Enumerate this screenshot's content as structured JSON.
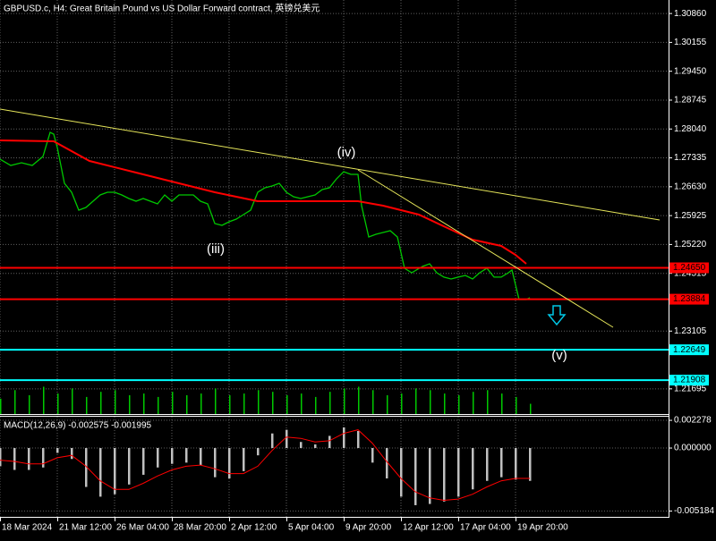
{
  "chart_data": [
    {
      "type": "line",
      "title": "GBPUSD.c, H4:  Great Britain Pound vs US Dollar Forward contract, 英镑兑美元",
      "xlim": [
        0,
        186.75
      ],
      "ylim": [
        1.2108,
        1.3119
      ],
      "yticks": [
        {
          "value": 1.3086,
          "label": "1.30860"
        },
        1.30155,
        {
          "value": 1.2945,
          "label": "1.29450"
        },
        1.28745,
        {
          "value": 1.2804,
          "label": "1.28040"
        },
        1.27335,
        {
          "value": 1.2663,
          "label": "1.26630"
        },
        1.25925,
        {
          "value": 1.2522,
          "label": "1.25220"
        },
        1.24515,
        1.23105,
        1.21695
      ],
      "xticks": [
        {
          "value": 0,
          "label": "18 Mar 2024"
        },
        {
          "value": 16,
          "label": "21 Mar 12:00"
        },
        {
          "value": 32,
          "label": "26 Mar 04:00"
        },
        {
          "value": 48,
          "label": "28 Mar 20:00"
        },
        {
          "value": 64,
          "label": "2 Apr 12:00"
        },
        {
          "value": 80,
          "label": "5 Apr 04:00"
        },
        {
          "value": 96,
          "label": "9 Apr 20:00"
        },
        {
          "value": 112,
          "label": "12 Apr 12:00"
        },
        {
          "value": 128,
          "label": "17 Apr 04:00"
        },
        {
          "value": 144,
          "label": "19 Apr 20:00"
        }
      ],
      "grid": true,
      "series": [
        {
          "color": "#00c800",
          "x": [
            0,
            3,
            6,
            9,
            12,
            14,
            15,
            16,
            18,
            20,
            22,
            24,
            26,
            28,
            30,
            32,
            34,
            36,
            38,
            40,
            42,
            44,
            46,
            48,
            50,
            52,
            54,
            56,
            58,
            60,
            62,
            64,
            66,
            68,
            70,
            72,
            74,
            76,
            78,
            80,
            82,
            84,
            86,
            88,
            90,
            92,
            94,
            96,
            98,
            100,
            101,
            103,
            105,
            107,
            109,
            111,
            113,
            115,
            118,
            120,
            122,
            124,
            126,
            128,
            130,
            132,
            134,
            136,
            138,
            140,
            142,
            143,
            145,
            147,
            148
          ],
          "values": [
            1.27303,
            1.2715,
            1.27215,
            1.2715,
            1.27368,
            1.27957,
            1.27914,
            1.27586,
            1.26713,
            1.26495,
            1.26058,
            1.26124,
            1.26277,
            1.2643,
            1.26495,
            1.26495,
            1.2643,
            1.26342,
            1.26277,
            1.26342,
            1.26277,
            1.26211,
            1.2643,
            1.26277,
            1.2643,
            1.2643,
            1.2643,
            1.26277,
            1.26211,
            1.25731,
            1.25687,
            1.25775,
            1.2584,
            1.25949,
            1.26058,
            1.26495,
            1.26604,
            1.26648,
            1.26713,
            1.26495,
            1.26386,
            1.26342,
            1.26386,
            1.2643,
            1.2656,
            1.26604,
            1.26822,
            1.26997,
            1.26931,
            1.26931,
            1.26168,
            1.25404,
            1.25469,
            1.25513,
            1.25557,
            1.25404,
            1.2464,
            1.24531,
            1.24684,
            1.24749,
            1.24531,
            1.24422,
            1.24378,
            1.24422,
            1.24465,
            1.24378,
            1.24531,
            1.2464,
            1.24422,
            1.24422,
            1.24531,
            1.24596,
            1.23876,
            1.23876,
            1.2392
          ]
        },
        {
          "color": "#ff0000",
          "x": [
            0,
            15,
            25,
            38,
            50,
            60,
            72,
            85,
            100,
            107,
            117,
            125,
            132,
            140,
            144,
            147
          ],
          "values": [
            1.27761,
            1.27739,
            1.27259,
            1.26975,
            1.26713,
            1.26495,
            1.26277,
            1.26277,
            1.26277,
            1.26168,
            1.25949,
            1.25622,
            1.25338,
            1.25186,
            1.24967,
            1.24749
          ]
        }
      ],
      "levels": [
        {
          "value": 1.2465,
          "label": "1.24650",
          "color": "#ff0000"
        },
        {
          "value": 1.23884,
          "label": "1.23884",
          "color": "#ff0000"
        },
        {
          "value": 1.22649,
          "label": "1.22649",
          "color": "#00ffff"
        },
        {
          "value": 1.21908,
          "label": "1.21908",
          "color": "#00ffff"
        }
      ],
      "annotations": [
        "(iii)",
        "(iv)",
        "(v)"
      ]
    },
    {
      "type": "bar",
      "color": "#00c800",
      "ylim": [
        0,
        110
      ],
      "x": [
        0,
        4,
        8,
        12,
        16,
        20,
        24,
        28,
        32,
        36,
        40,
        44,
        48,
        52,
        56,
        60,
        64,
        68,
        72,
        76,
        80,
        84,
        88,
        92,
        96,
        100,
        104,
        108,
        112,
        116,
        120,
        124,
        128,
        132,
        136,
        140,
        144,
        148
      ],
      "values": [
        45,
        70,
        55,
        80,
        60,
        75,
        50,
        65,
        70,
        55,
        60,
        50,
        65,
        55,
        60,
        75,
        55,
        60,
        70,
        65,
        55,
        60,
        50,
        65,
        75,
        80,
        70,
        55,
        60,
        75,
        70,
        60,
        55,
        65,
        70,
        60,
        50,
        30
      ]
    },
    {
      "type": "bar",
      "title": "MACD(12,26,9) -0.002575 -0.001995",
      "ylim": [
        -0.00566,
        0.00265
      ],
      "yticks": [
        0.002278,
        {
          "value": 0,
          "label": "0.000000"
        },
        -0.005184
      ],
      "x": [
        0,
        4,
        8,
        12,
        16,
        20,
        24,
        28,
        32,
        36,
        40,
        44,
        48,
        52,
        56,
        60,
        64,
        68,
        72,
        76,
        80,
        84,
        88,
        92,
        96,
        100,
        104,
        108,
        112,
        116,
        120,
        124,
        128,
        132,
        136,
        140,
        144,
        148
      ],
      "series": [
        {
          "type": "bar",
          "color": "#c0c0c0",
          "values": [
            -0.0015,
            -0.0018,
            -0.0018,
            -0.0016,
            -0.0004,
            -0.0009,
            -0.0032,
            -0.004,
            -0.0038,
            -0.003,
            -0.0022,
            -0.0016,
            -0.0013,
            -0.0012,
            -0.0014,
            -0.0024,
            -0.0025,
            -0.0019,
            -0.0006,
            0.0012,
            0.0015,
            0.0005,
            0.0003,
            0.001,
            0.0017,
            0.0014,
            -0.0012,
            -0.0025,
            -0.004,
            -0.0047,
            -0.0046,
            -0.0044,
            -0.004,
            -0.0034,
            -0.0027,
            -0.0024,
            -0.0026,
            -0.0027
          ]
        },
        {
          "type": "line",
          "color": "#ff0000",
          "values": [
            -0.001,
            -0.0011,
            -0.0013,
            -0.0013,
            -0.0008,
            -0.0006,
            -0.0015,
            -0.0027,
            -0.0034,
            -0.0034,
            -0.0029,
            -0.0023,
            -0.0018,
            -0.0015,
            -0.0014,
            -0.0017,
            -0.0021,
            -0.0021,
            -0.0015,
            -0.0002,
            0.0009,
            0.0008,
            0.0005,
            0.0006,
            0.0012,
            0.0015,
            0.0004,
            -0.0011,
            -0.0025,
            -0.0036,
            -0.0041,
            -0.0043,
            -0.0042,
            -0.0038,
            -0.0032,
            -0.0027,
            -0.0025,
            -0.0025
          ]
        }
      ]
    }
  ]
}
